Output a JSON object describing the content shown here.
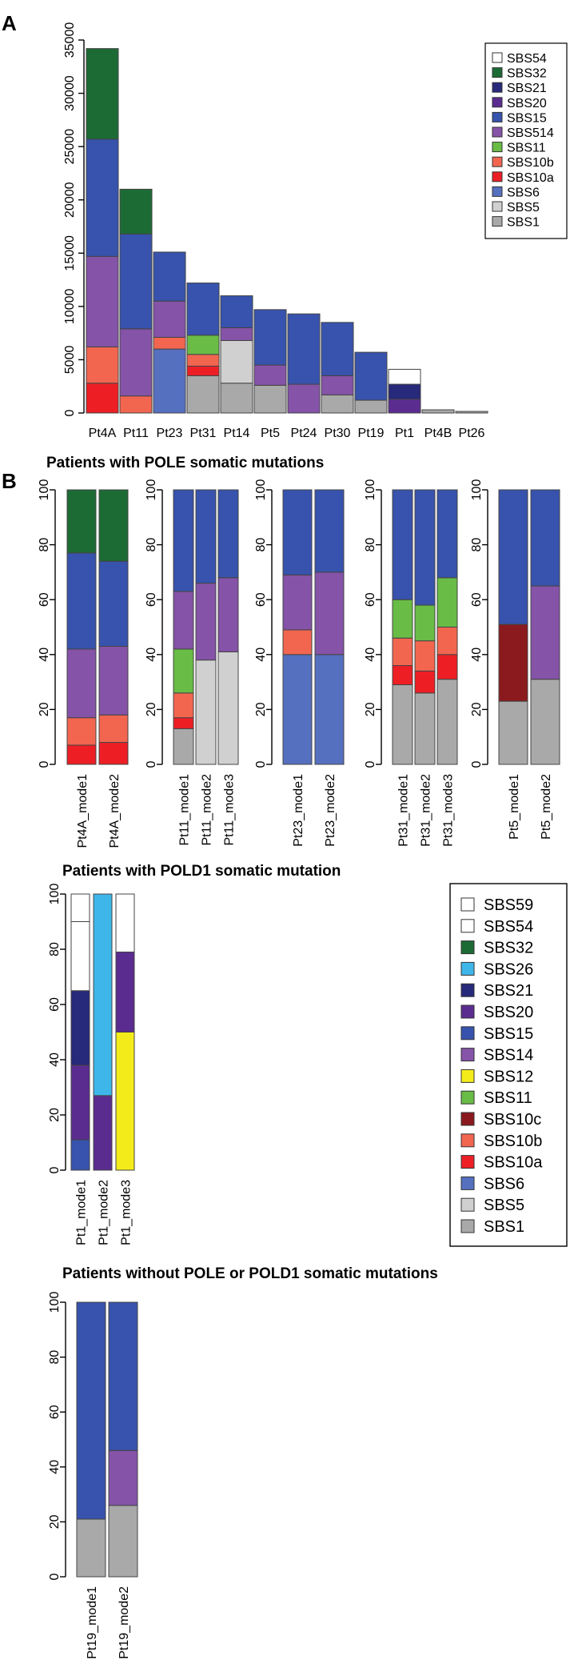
{
  "panels": [
    {
      "letter": "A"
    },
    {
      "letter": "B",
      "title": "Patients with POLE somatic mutations"
    }
  ],
  "group_titles": {
    "pold1": "Patients with POLD1 somatic mutation",
    "none": "Patients without POLE or POLD1 somatic mutations"
  },
  "colors": {
    "SBS59": "#ffffff",
    "SBS54": "#ffffff",
    "SBS32": "#1c6b35",
    "SBS26": "#3fb6ea",
    "SBS21": "#27297a",
    "SBS20": "#5b2c90",
    "SBS15": "#3753ad",
    "SBS514": "#8553a8",
    "SBS14": "#8553a8",
    "SBS12": "#f4ec1a",
    "SBS11": "#69bc45",
    "SBS10c": "#8b1a1e",
    "SBS10b": "#f26650",
    "SBS10a": "#ed1f25",
    "SBS6": "#5670c0",
    "SBS5": "#d0d0d0",
    "SBS1": "#a9a9a9"
  },
  "chart_data": [
    {
      "id": "A",
      "type": "bar",
      "stacked": true,
      "title": "",
      "xlabel": "",
      "ylabel": "",
      "ylim": [
        0,
        35000
      ],
      "yticks": [
        0,
        5000,
        10000,
        15000,
        20000,
        25000,
        30000,
        35000
      ],
      "categories": [
        "Pt4A",
        "Pt11",
        "Pt23",
        "Pt31",
        "Pt14",
        "Pt5",
        "Pt24",
        "Pt30",
        "Pt19",
        "Pt1",
        "Pt4B",
        "Pt26"
      ],
      "legend": [
        "SBS54",
        "SBS32",
        "SBS21",
        "SBS20",
        "SBS15",
        "SBS514",
        "SBS11",
        "SBS10b",
        "SBS10a",
        "SBS6",
        "SBS5",
        "SBS1"
      ],
      "legend_position": "top-right",
      "stacks": [
        [
          {
            "s": "SBS10a",
            "v": 2800
          },
          {
            "s": "SBS10b",
            "v": 3400
          },
          {
            "s": "SBS514",
            "v": 8500
          },
          {
            "s": "SBS15",
            "v": 11000
          },
          {
            "s": "SBS32",
            "v": 8500
          }
        ],
        [
          {
            "s": "SBS10b",
            "v": 1600
          },
          {
            "s": "SBS514",
            "v": 6300
          },
          {
            "s": "SBS15",
            "v": 8900
          },
          {
            "s": "SBS32",
            "v": 4200
          }
        ],
        [
          {
            "s": "SBS6",
            "v": 6000
          },
          {
            "s": "SBS10b",
            "v": 1100
          },
          {
            "s": "SBS514",
            "v": 3400
          },
          {
            "s": "SBS15",
            "v": 4600
          }
        ],
        [
          {
            "s": "SBS1",
            "v": 3500
          },
          {
            "s": "SBS10a",
            "v": 900
          },
          {
            "s": "SBS10b",
            "v": 1100
          },
          {
            "s": "SBS11",
            "v": 1800
          },
          {
            "s": "SBS15",
            "v": 4900
          }
        ],
        [
          {
            "s": "SBS1",
            "v": 2800
          },
          {
            "s": "SBS5",
            "v": 4000
          },
          {
            "s": "SBS514",
            "v": 1200
          },
          {
            "s": "SBS15",
            "v": 3000
          }
        ],
        [
          {
            "s": "SBS1",
            "v": 2600
          },
          {
            "s": "SBS514",
            "v": 1900
          },
          {
            "s": "SBS15",
            "v": 5200
          }
        ],
        [
          {
            "s": "SBS514",
            "v": 2700
          },
          {
            "s": "SBS15",
            "v": 6600
          }
        ],
        [
          {
            "s": "SBS1",
            "v": 1700
          },
          {
            "s": "SBS514",
            "v": 1800
          },
          {
            "s": "SBS15",
            "v": 5000
          }
        ],
        [
          {
            "s": "SBS1",
            "v": 1200
          },
          {
            "s": "SBS15",
            "v": 4500
          }
        ],
        [
          {
            "s": "SBS20",
            "v": 1300
          },
          {
            "s": "SBS21",
            "v": 1400
          },
          {
            "s": "SBS54",
            "v": 1400
          }
        ],
        [
          {
            "s": "SBS1",
            "v": 300
          }
        ],
        [
          {
            "s": "SBS1",
            "v": 150
          }
        ]
      ]
    },
    {
      "id": "B-Pt4A",
      "type": "bar",
      "stacked": true,
      "ylim": [
        0,
        100
      ],
      "yticks": [
        0,
        20,
        40,
        60,
        80,
        100
      ],
      "categories": [
        "Pt4A_mode1",
        "Pt4A_mode2"
      ],
      "stacks": [
        [
          {
            "s": "SBS10a",
            "v": 7
          },
          {
            "s": "SBS10b",
            "v": 10
          },
          {
            "s": "SBS514",
            "v": 25
          },
          {
            "s": "SBS15",
            "v": 35
          },
          {
            "s": "SBS32",
            "v": 23
          }
        ],
        [
          {
            "s": "SBS10a",
            "v": 8
          },
          {
            "s": "SBS10b",
            "v": 10
          },
          {
            "s": "SBS514",
            "v": 25
          },
          {
            "s": "SBS15",
            "v": 31
          },
          {
            "s": "SBS32",
            "v": 26
          }
        ]
      ]
    },
    {
      "id": "B-Pt11",
      "type": "bar",
      "stacked": true,
      "ylim": [
        0,
        100
      ],
      "yticks": [
        0,
        20,
        40,
        60,
        80,
        100
      ],
      "categories": [
        "Pt11_mode1",
        "Pt11_mode2",
        "Pt11_mode3"
      ],
      "stacks": [
        [
          {
            "s": "SBS1",
            "v": 13
          },
          {
            "s": "SBS10a",
            "v": 4
          },
          {
            "s": "SBS10b",
            "v": 9
          },
          {
            "s": "SBS11",
            "v": 16
          },
          {
            "s": "SBS514",
            "v": 21
          },
          {
            "s": "SBS15",
            "v": 37
          }
        ],
        [
          {
            "s": "SBS5",
            "v": 38
          },
          {
            "s": "SBS514",
            "v": 28
          },
          {
            "s": "SBS15",
            "v": 34
          }
        ],
        [
          {
            "s": "SBS5",
            "v": 41
          },
          {
            "s": "SBS514",
            "v": 27
          },
          {
            "s": "SBS15",
            "v": 32
          }
        ]
      ]
    },
    {
      "id": "B-Pt23",
      "type": "bar",
      "stacked": true,
      "ylim": [
        0,
        100
      ],
      "yticks": [
        0,
        20,
        40,
        60,
        80,
        100
      ],
      "categories": [
        "Pt23_mode1",
        "Pt23_mode2"
      ],
      "stacks": [
        [
          {
            "s": "SBS6",
            "v": 40
          },
          {
            "s": "SBS10b",
            "v": 9
          },
          {
            "s": "SBS514",
            "v": 20
          },
          {
            "s": "SBS15",
            "v": 31
          }
        ],
        [
          {
            "s": "SBS6",
            "v": 40
          },
          {
            "s": "SBS514",
            "v": 30
          },
          {
            "s": "SBS15",
            "v": 30
          }
        ]
      ]
    },
    {
      "id": "B-Pt31",
      "type": "bar",
      "stacked": true,
      "ylim": [
        0,
        100
      ],
      "yticks": [
        0,
        20,
        40,
        60,
        80,
        100
      ],
      "categories": [
        "Pt31_mode1",
        "Pt31_mode2",
        "Pt31_mode3"
      ],
      "stacks": [
        [
          {
            "s": "SBS1",
            "v": 29
          },
          {
            "s": "SBS10a",
            "v": 7
          },
          {
            "s": "SBS10b",
            "v": 10
          },
          {
            "s": "SBS11",
            "v": 14
          },
          {
            "s": "SBS15",
            "v": 40
          }
        ],
        [
          {
            "s": "SBS1",
            "v": 26
          },
          {
            "s": "SBS10a",
            "v": 8
          },
          {
            "s": "SBS10b",
            "v": 11
          },
          {
            "s": "SBS11",
            "v": 13
          },
          {
            "s": "SBS15",
            "v": 42
          }
        ],
        [
          {
            "s": "SBS1",
            "v": 31
          },
          {
            "s": "SBS10a",
            "v": 9
          },
          {
            "s": "SBS10b",
            "v": 10
          },
          {
            "s": "SBS11",
            "v": 18
          },
          {
            "s": "SBS15",
            "v": 32
          }
        ]
      ]
    },
    {
      "id": "B-Pt5",
      "type": "bar",
      "stacked": true,
      "ylim": [
        0,
        100
      ],
      "yticks": [
        0,
        20,
        40,
        60,
        80,
        100
      ],
      "categories": [
        "Pt5_mode1",
        "Pt5_mode2"
      ],
      "stacks": [
        [
          {
            "s": "SBS1",
            "v": 23
          },
          {
            "s": "SBS10c",
            "v": 28
          },
          {
            "s": "SBS15",
            "v": 49
          }
        ],
        [
          {
            "s": "SBS1",
            "v": 31
          },
          {
            "s": "SBS514",
            "v": 34
          },
          {
            "s": "SBS15",
            "v": 35
          }
        ]
      ]
    },
    {
      "id": "B-Pt1",
      "type": "bar",
      "stacked": true,
      "ylim": [
        0,
        100
      ],
      "yticks": [
        0,
        20,
        40,
        60,
        80,
        100
      ],
      "categories": [
        "Pt1_mode1",
        "Pt1_mode2",
        "Pt1_mode3"
      ],
      "legend": [
        "SBS59",
        "SBS54",
        "SBS32",
        "SBS26",
        "SBS21",
        "SBS20",
        "SBS15",
        "SBS14",
        "SBS12",
        "SBS11",
        "SBS10c",
        "SBS10b",
        "SBS10a",
        "SBS6",
        "SBS5",
        "SBS1"
      ],
      "legend_position": "right",
      "stacks": [
        [
          {
            "s": "SBS15",
            "v": 11
          },
          {
            "s": "SBS20",
            "v": 27
          },
          {
            "s": "SBS21",
            "v": 27
          },
          {
            "s": "SBS54",
            "v": 25
          },
          {
            "s": "SBS59",
            "v": 10
          }
        ],
        [
          {
            "s": "SBS20",
            "v": 27
          },
          {
            "s": "SBS26",
            "v": 73
          }
        ],
        [
          {
            "s": "SBS12",
            "v": 50
          },
          {
            "s": "SBS20",
            "v": 29
          },
          {
            "s": "SBS54",
            "v": 21
          }
        ]
      ]
    },
    {
      "id": "B-Pt19",
      "type": "bar",
      "stacked": true,
      "ylim": [
        0,
        100
      ],
      "yticks": [
        0,
        20,
        40,
        60,
        80,
        100
      ],
      "categories": [
        "Pt19_mode1",
        "Pt19_mode2"
      ],
      "stacks": [
        [
          {
            "s": "SBS1",
            "v": 21
          },
          {
            "s": "SBS15",
            "v": 79
          }
        ],
        [
          {
            "s": "SBS1",
            "v": 26
          },
          {
            "s": "SBS14",
            "v": 20
          },
          {
            "s": "SBS15",
            "v": 54
          }
        ]
      ]
    }
  ]
}
